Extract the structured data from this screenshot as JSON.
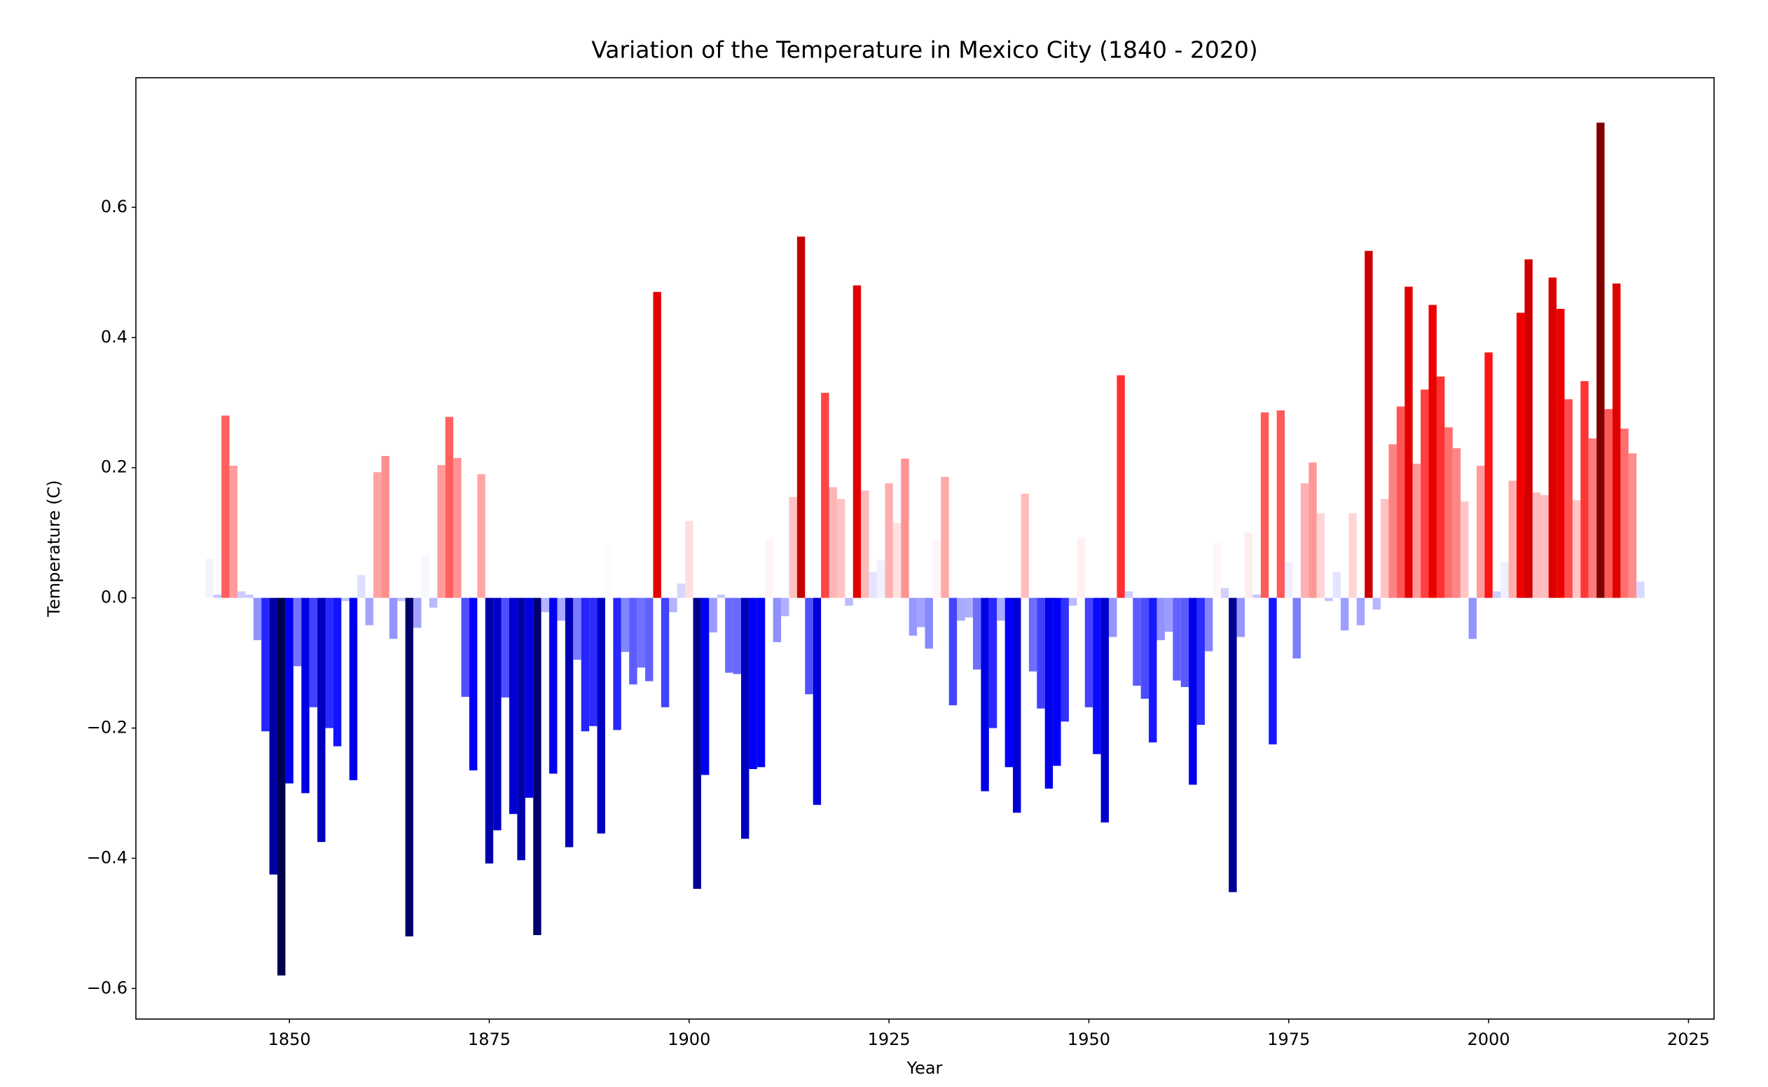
{
  "chart_data": {
    "type": "bar",
    "title": "Variation of the Temperature in Mexico City (1840 - 2020)",
    "xlabel": "Year",
    "ylabel": "Temperature (C)",
    "colormap": "seismic",
    "x": [
      1840,
      1841,
      1842,
      1843,
      1844,
      1845,
      1846,
      1847,
      1848,
      1849,
      1850,
      1851,
      1852,
      1853,
      1854,
      1855,
      1856,
      1857,
      1858,
      1859,
      1860,
      1861,
      1862,
      1863,
      1864,
      1865,
      1866,
      1867,
      1868,
      1869,
      1870,
      1871,
      1872,
      1873,
      1874,
      1875,
      1876,
      1877,
      1878,
      1879,
      1880,
      1881,
      1882,
      1883,
      1884,
      1885,
      1886,
      1887,
      1888,
      1889,
      1890,
      1891,
      1892,
      1893,
      1894,
      1895,
      1896,
      1897,
      1898,
      1899,
      1900,
      1901,
      1902,
      1903,
      1904,
      1905,
      1906,
      1907,
      1908,
      1909,
      1910,
      1911,
      1912,
      1913,
      1914,
      1915,
      1916,
      1917,
      1918,
      1919,
      1920,
      1921,
      1922,
      1923,
      1924,
      1925,
      1926,
      1927,
      1928,
      1929,
      1930,
      1931,
      1932,
      1933,
      1934,
      1935,
      1936,
      1937,
      1938,
      1939,
      1940,
      1941,
      1942,
      1943,
      1944,
      1945,
      1946,
      1947,
      1948,
      1949,
      1950,
      1951,
      1952,
      1953,
      1954,
      1955,
      1956,
      1957,
      1958,
      1959,
      1960,
      1961,
      1962,
      1963,
      1964,
      1965,
      1966,
      1967,
      1968,
      1969,
      1970,
      1971,
      1972,
      1973,
      1974,
      1975,
      1976,
      1977,
      1978,
      1979,
      1980,
      1981,
      1982,
      1983,
      1984,
      1985,
      1986,
      1987,
      1988,
      1989,
      1990,
      1991,
      1992,
      1993,
      1994,
      1995,
      1996,
      1997,
      1998,
      1999,
      2000,
      2001,
      2002,
      2003,
      2004,
      2005,
      2006,
      2007,
      2008,
      2009,
      2010,
      2011,
      2012,
      2013,
      2014,
      2015,
      2016,
      2017,
      2018,
      2019
    ],
    "values": [
      0.06,
      0.005,
      0.28,
      0.203,
      0.01,
      0.005,
      -0.065,
      -0.205,
      -0.425,
      -0.58,
      -0.285,
      -0.105,
      -0.3,
      -0.168,
      -0.375,
      -0.2,
      -0.228,
      -0.005,
      -0.28,
      0.035,
      -0.042,
      0.193,
      0.218,
      -0.063,
      -0.005,
      -0.52,
      -0.046,
      0.065,
      -0.015,
      0.204,
      0.278,
      0.215,
      -0.152,
      -0.265,
      0.19,
      -0.408,
      -0.357,
      -0.153,
      -0.332,
      -0.403,
      -0.307,
      -0.518,
      -0.022,
      -0.27,
      -0.035,
      -0.383,
      -0.095,
      -0.205,
      -0.197,
      -0.362,
      0.08,
      -0.203,
      -0.083,
      -0.133,
      -0.107,
      -0.128,
      0.47,
      -0.168,
      -0.022,
      0.022,
      0.118,
      -0.447,
      -0.272,
      -0.053,
      0.005,
      -0.115,
      -0.117,
      -0.37,
      -0.263,
      -0.26,
      0.09,
      -0.068,
      -0.028,
      0.155,
      0.555,
      -0.148,
      -0.318,
      0.315,
      0.17,
      0.152,
      -0.012,
      0.48,
      0.165,
      0.04,
      0.058,
      0.176,
      0.115,
      0.214,
      -0.058,
      -0.045,
      -0.078,
      0.09,
      0.186,
      -0.165,
      -0.035,
      -0.03,
      -0.11,
      -0.297,
      -0.2,
      -0.035,
      -0.26,
      -0.33,
      0.16,
      -0.113,
      -0.17,
      -0.293,
      -0.258,
      -0.19,
      -0.012,
      0.093,
      -0.168,
      -0.24,
      -0.345,
      -0.06,
      0.342,
      0.01,
      -0.135,
      -0.155,
      -0.222,
      -0.065,
      -0.052,
      -0.127,
      -0.137,
      -0.287,
      -0.195,
      -0.082,
      0.085,
      0.015,
      -0.452,
      -0.06,
      0.1,
      0.005,
      0.285,
      -0.225,
      0.288,
      0.055,
      -0.093,
      0.176,
      0.208,
      0.13,
      -0.005,
      0.04,
      -0.05,
      0.13,
      -0.042,
      0.533,
      -0.018,
      0.152,
      0.236,
      0.294,
      0.478,
      0.206,
      0.32,
      0.45,
      0.34,
      0.262,
      0.23,
      0.148,
      -0.063,
      0.203,
      0.377,
      0.01,
      0.055,
      0.18,
      0.438,
      0.52,
      0.162,
      0.158,
      0.492,
      0.444,
      0.305,
      0.15,
      0.333,
      0.245,
      0.73,
      0.29,
      0.483,
      0.26,
      0.222,
      0.025
    ],
    "xlim": [
      1830.8,
      2028.2
    ],
    "ylim": [
      -0.647,
      0.799
    ],
    "xticks": [
      1850,
      1875,
      1900,
      1925,
      1950,
      1975,
      2000,
      2025
    ],
    "yticks": [
      {
        "value": -0.6,
        "label": "−0.6"
      },
      {
        "value": -0.4,
        "label": "−0.4"
      },
      {
        "value": -0.2,
        "label": "−0.2"
      },
      {
        "value": 0,
        "label": "0.0"
      },
      {
        "value": 0.2,
        "label": "0.2"
      },
      {
        "value": 0.4,
        "label": "0.4"
      },
      {
        "value": 0.6,
        "label": "0.6"
      }
    ],
    "grid": false
  }
}
